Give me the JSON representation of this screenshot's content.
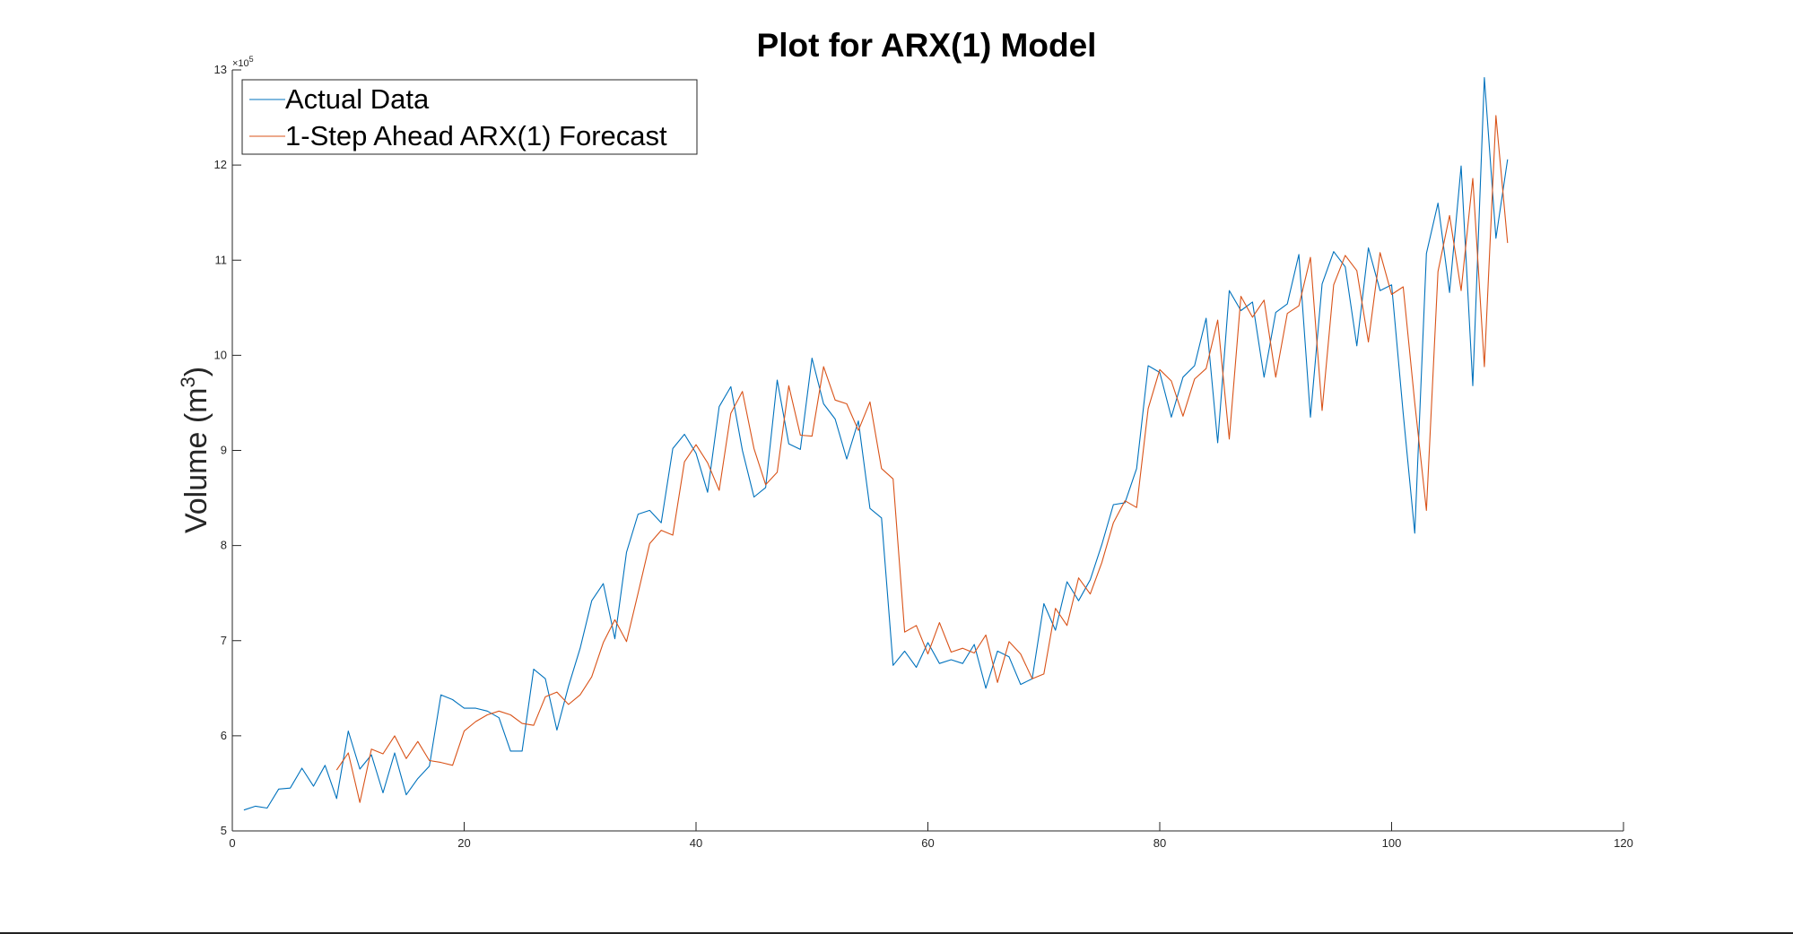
{
  "chart_data": {
    "type": "line",
    "title": "Plot for ARX(1) Model",
    "xlabel": "",
    "ylabel": "Volume (m",
    "ylabel_superscript": "3",
    "ylabel_close": ")",
    "y_exponent_base": "×10",
    "y_exponent_power": "5",
    "xlim": [
      0,
      120
    ],
    "ylim": [
      5,
      13
    ],
    "xticks": [
      0,
      20,
      40,
      60,
      80,
      100,
      120
    ],
    "yticks": [
      5,
      6,
      7,
      8,
      9,
      10,
      11,
      12,
      13
    ],
    "grid": false,
    "legend_position": "top-left",
    "series": [
      {
        "name": "Actual Data",
        "color": "#0072BD",
        "x": [
          1,
          2,
          3,
          4,
          5,
          6,
          7,
          8,
          9,
          10,
          11,
          12,
          13,
          14,
          15,
          16,
          17,
          18,
          19,
          20,
          21,
          22,
          23,
          24,
          25,
          26,
          27,
          28,
          29,
          30,
          31,
          32,
          33,
          34,
          35,
          36,
          37,
          38,
          39,
          40,
          41,
          42,
          43,
          44,
          45,
          46,
          47,
          48,
          49,
          50,
          51,
          52,
          53,
          54,
          55,
          56,
          57,
          58,
          59,
          60,
          61,
          62,
          63,
          64,
          65,
          66,
          67,
          68,
          69,
          70,
          71,
          72,
          73,
          74,
          75,
          76,
          77,
          78,
          79,
          80,
          81,
          82,
          83,
          84,
          85,
          86,
          87,
          88,
          89,
          90,
          91,
          92,
          93,
          94,
          95,
          96,
          97,
          98,
          99,
          100,
          101,
          102,
          103,
          104,
          105,
          106,
          107,
          108,
          109,
          110
        ],
        "values": [
          5.22,
          5.26,
          5.24,
          5.44,
          5.45,
          5.66,
          5.47,
          5.69,
          5.34,
          6.05,
          5.65,
          5.8,
          5.4,
          5.82,
          5.38,
          5.55,
          5.68,
          6.43,
          6.38,
          6.29,
          6.29,
          6.26,
          6.19,
          5.84,
          5.84,
          6.7,
          6.6,
          6.06,
          6.52,
          6.92,
          7.42,
          7.6,
          7.02,
          7.93,
          8.33,
          8.37,
          8.24,
          9.02,
          9.17,
          8.97,
          8.56,
          9.46,
          9.67,
          9.0,
          8.51,
          8.61,
          9.74,
          9.07,
          9.01,
          9.97,
          9.49,
          9.33,
          8.91,
          9.31,
          8.39,
          8.29,
          6.74,
          6.89,
          6.72,
          6.98,
          6.76,
          6.8,
          6.76,
          6.96,
          6.5,
          6.89,
          6.83,
          6.54,
          6.6,
          7.39,
          7.11,
          7.62,
          7.42,
          7.64,
          8.01,
          8.43,
          8.45,
          8.81,
          9.89,
          9.82,
          9.35,
          9.77,
          9.89,
          10.39,
          9.08,
          10.68,
          10.47,
          10.56,
          9.77,
          10.45,
          10.54,
          11.06,
          9.35,
          10.75,
          11.09,
          10.93,
          10.1,
          11.13,
          10.68,
          10.74,
          9.39,
          8.13,
          11.07,
          11.6,
          10.66,
          11.99,
          9.68,
          12.92,
          11.23,
          12.06
        ]
      },
      {
        "name": "1-Step Ahead ARX(1) Forecast",
        "color": "#D95319",
        "x": [
          9,
          10,
          11,
          12,
          13,
          14,
          15,
          16,
          17,
          18,
          19,
          20,
          21,
          22,
          23,
          24,
          25,
          26,
          27,
          28,
          29,
          30,
          31,
          32,
          33,
          34,
          35,
          36,
          37,
          38,
          39,
          40,
          41,
          42,
          43,
          44,
          45,
          46,
          47,
          48,
          49,
          50,
          51,
          52,
          53,
          54,
          55,
          56,
          57,
          58,
          59,
          60,
          61,
          62,
          63,
          64,
          65,
          66,
          67,
          68,
          69,
          70,
          71,
          72,
          73,
          74,
          75,
          76,
          77,
          78,
          79,
          80,
          81,
          82,
          83,
          84,
          85,
          86,
          87,
          88,
          89,
          90,
          91,
          92,
          93,
          94,
          95,
          96,
          97,
          98,
          99,
          100,
          101,
          102,
          103,
          104,
          105,
          106,
          107,
          108,
          109,
          110
        ],
        "values": [
          5.64,
          5.82,
          5.3,
          5.86,
          5.81,
          6.0,
          5.76,
          5.94,
          5.74,
          5.72,
          5.69,
          6.05,
          6.15,
          6.22,
          6.26,
          6.22,
          6.13,
          6.11,
          6.41,
          6.46,
          6.33,
          6.43,
          6.62,
          6.98,
          7.22,
          6.99,
          7.5,
          8.02,
          8.16,
          8.11,
          8.88,
          9.06,
          8.87,
          8.58,
          9.39,
          9.62,
          9.02,
          8.64,
          8.77,
          9.68,
          9.16,
          9.15,
          9.88,
          9.53,
          9.49,
          9.21,
          9.51,
          8.81,
          8.7,
          7.09,
          7.16,
          6.86,
          7.19,
          6.88,
          6.92,
          6.87,
          7.06,
          6.56,
          6.99,
          6.86,
          6.6,
          6.65,
          7.34,
          7.16,
          7.66,
          7.49,
          7.82,
          8.24,
          8.47,
          8.4,
          9.44,
          9.85,
          9.73,
          9.36,
          9.75,
          9.86,
          10.37,
          9.12,
          10.62,
          10.4,
          10.58,
          9.77,
          10.44,
          10.52,
          11.03,
          9.42,
          10.74,
          11.05,
          10.89,
          10.14,
          11.08,
          10.64,
          10.72,
          9.5,
          8.37,
          10.88,
          11.47,
          10.68,
          11.86,
          9.88,
          12.52,
          11.18
        ]
      }
    ]
  }
}
